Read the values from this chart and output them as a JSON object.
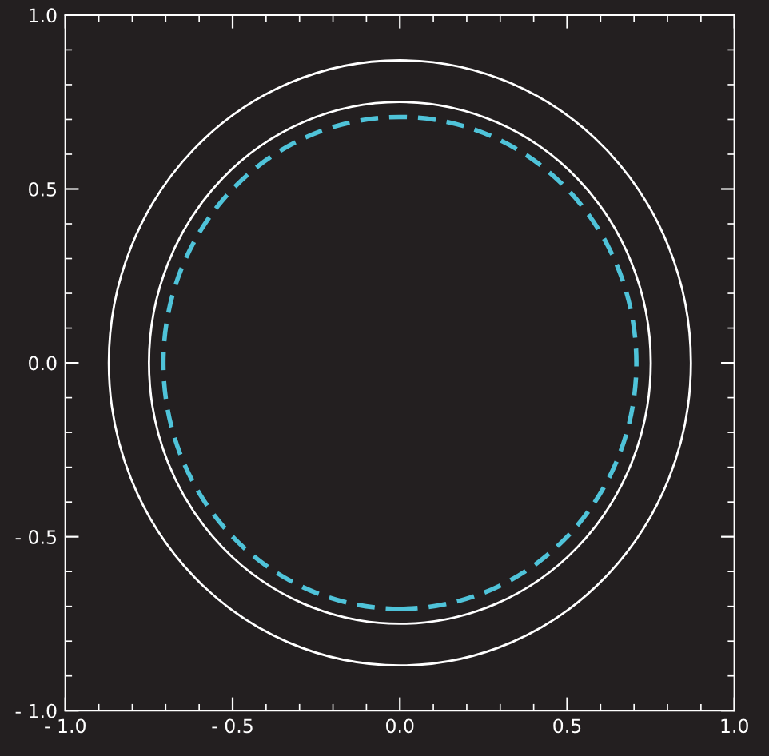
{
  "chart_data": {
    "type": "line",
    "xlim": [
      -1,
      1
    ],
    "ylim": [
      -1,
      1
    ],
    "xticks": [
      {
        "value": -1,
        "label": "- 1.0"
      },
      {
        "value": -0.9,
        "label": null
      },
      {
        "value": -0.8,
        "label": null
      },
      {
        "value": -0.7,
        "label": null
      },
      {
        "value": -0.6,
        "label": null
      },
      {
        "value": -0.5,
        "label": "- 0.5"
      },
      {
        "value": -0.4,
        "label": null
      },
      {
        "value": -0.3,
        "label": null
      },
      {
        "value": -0.2,
        "label": null
      },
      {
        "value": -0.1,
        "label": null
      },
      {
        "value": 0,
        "label": "0.0"
      },
      {
        "value": 0.1,
        "label": null
      },
      {
        "value": 0.2,
        "label": null
      },
      {
        "value": 0.3,
        "label": null
      },
      {
        "value": 0.4,
        "label": null
      },
      {
        "value": 0.5,
        "label": "0.5"
      },
      {
        "value": 0.6,
        "label": null
      },
      {
        "value": 0.7,
        "label": null
      },
      {
        "value": 0.8,
        "label": null
      },
      {
        "value": 0.9,
        "label": null
      },
      {
        "value": 1,
        "label": "1.0"
      }
    ],
    "yticks": [
      {
        "value": -1,
        "label": "- 1.0"
      },
      {
        "value": -0.9,
        "label": null
      },
      {
        "value": -0.8,
        "label": null
      },
      {
        "value": -0.7,
        "label": null
      },
      {
        "value": -0.6,
        "label": null
      },
      {
        "value": -0.5,
        "label": "- 0.5"
      },
      {
        "value": -0.4,
        "label": null
      },
      {
        "value": -0.3,
        "label": null
      },
      {
        "value": -0.2,
        "label": null
      },
      {
        "value": -0.1,
        "label": null
      },
      {
        "value": 0,
        "label": "0.0"
      },
      {
        "value": 0.1,
        "label": null
      },
      {
        "value": 0.2,
        "label": null
      },
      {
        "value": 0.3,
        "label": null
      },
      {
        "value": 0.4,
        "label": null
      },
      {
        "value": 0.5,
        "label": "0.5"
      },
      {
        "value": 0.6,
        "label": null
      },
      {
        "value": 0.7,
        "label": null
      },
      {
        "value": 0.8,
        "label": null
      },
      {
        "value": 0.9,
        "label": null
      },
      {
        "value": 1,
        "label": "1.0"
      }
    ],
    "grid": false
  }
}
